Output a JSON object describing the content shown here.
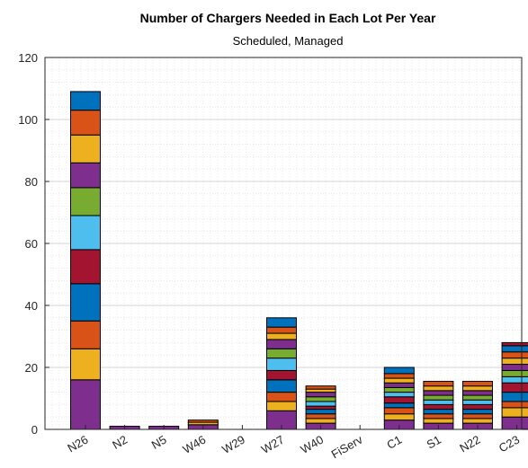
{
  "chart_data": {
    "type": "bar",
    "stacked": true,
    "title": "Number of Chargers Needed in Each Lot Per Year",
    "subtitle": "Scheduled, Managed",
    "xlabel": "",
    "ylabel": "",
    "categories": [
      "N26",
      "N2",
      "N5",
      "W46",
      "W29",
      "W27",
      "W40",
      "FiServ",
      "C1",
      "S1",
      "N22",
      "C23"
    ],
    "ylim": [
      0,
      120
    ],
    "yticks": [
      0,
      20,
      40,
      60,
      80,
      100,
      120
    ],
    "grid": "major-and-minor",
    "series_colors": [
      "#7E2F8E",
      "#EDB120",
      "#D95319",
      "#0072BD",
      "#A2142F",
      "#4DBEEE",
      "#77AC30"
    ],
    "stacks": [
      [
        16,
        10,
        9,
        12,
        11,
        11,
        9,
        8,
        9,
        8,
        6
      ],
      [
        1
      ],
      [
        1
      ],
      [
        1.5,
        0.8,
        0.7
      ],
      [],
      [
        6,
        3,
        3,
        4,
        3,
        4,
        3,
        3,
        2,
        2,
        3
      ],
      [
        2,
        1.5,
        1.5,
        1.5,
        1,
        1.5,
        1.5,
        1.5,
        1,
        1
      ],
      [],
      [
        3,
        2,
        2,
        1.5,
        2,
        1.5,
        1.5,
        1.5,
        1.5,
        1.5,
        2
      ],
      [
        2,
        1.5,
        1.5,
        1.5,
        1.5,
        1.5,
        1.5,
        1.5,
        1.5,
        1.5
      ],
      [
        2,
        1.5,
        1.5,
        1.5,
        1.5,
        1.5,
        1.5,
        1.5,
        1.5,
        1.5
      ],
      [
        4,
        3,
        2,
        3,
        3,
        2,
        2,
        2,
        2,
        2,
        2,
        1
      ]
    ]
  }
}
